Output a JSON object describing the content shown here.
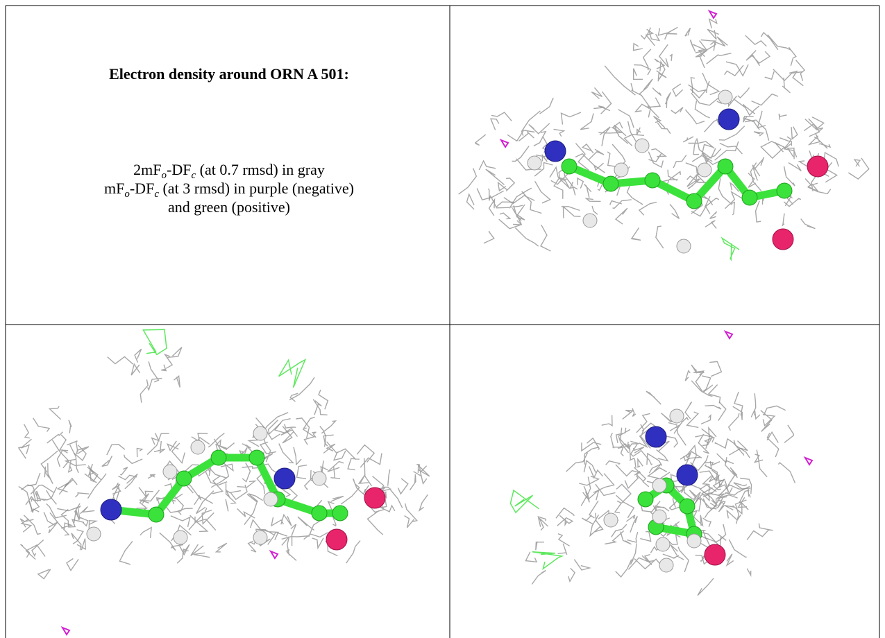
{
  "header": {
    "title": "Electron density around ORN A 501:"
  },
  "legend": {
    "lines": [
      [
        "2mF",
        "o",
        "-DF",
        "c",
        " (at 0.7 rmsd) in gray"
      ],
      [
        "mF",
        "o",
        "-DF",
        "c",
        " (at 3 rmsd) in purple (negative)"
      ],
      [
        "and green (positive)"
      ]
    ]
  }
}
